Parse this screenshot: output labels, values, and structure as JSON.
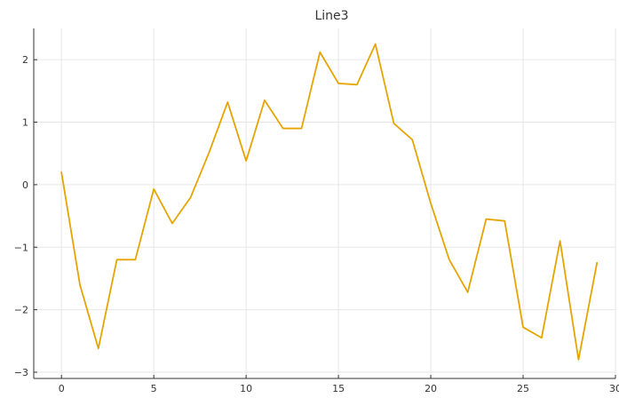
{
  "chart_data": {
    "type": "line",
    "title": "Line3",
    "xlabel": "",
    "ylabel": "",
    "xlim": [
      -1.5,
      30
    ],
    "ylim": [
      -3.1,
      2.5
    ],
    "x_ticks": [
      0,
      5,
      10,
      15,
      20,
      25,
      30
    ],
    "y_ticks": [
      2,
      1,
      0,
      -1,
      -2,
      -3
    ],
    "x_tick_labels": [
      "0",
      "5",
      "10",
      "15",
      "20",
      "25",
      "30"
    ],
    "y_tick_labels": [
      "2",
      "1",
      "0",
      "−1",
      "−2",
      "−3"
    ],
    "grid": true,
    "legend": "none",
    "series": [
      {
        "color": "#e6a400",
        "x": [
          0,
          1,
          2,
          3,
          4,
          5,
          6,
          7,
          8,
          9,
          10,
          11,
          12,
          13,
          14,
          15,
          16,
          17,
          18,
          19,
          20,
          21,
          22,
          23,
          24,
          25,
          26,
          27,
          28,
          29
        ],
        "y": [
          0.2,
          -1.6,
          -2.62,
          -1.2,
          -1.2,
          -0.07,
          -0.62,
          -0.2,
          0.52,
          1.32,
          0.38,
          1.35,
          0.9,
          0.9,
          2.12,
          1.62,
          1.6,
          2.25,
          0.98,
          0.72,
          -0.3,
          -1.2,
          -1.72,
          -0.55,
          -0.58,
          -2.28,
          -2.45,
          -0.9,
          -2.8,
          -1.25
        ]
      }
    ]
  }
}
